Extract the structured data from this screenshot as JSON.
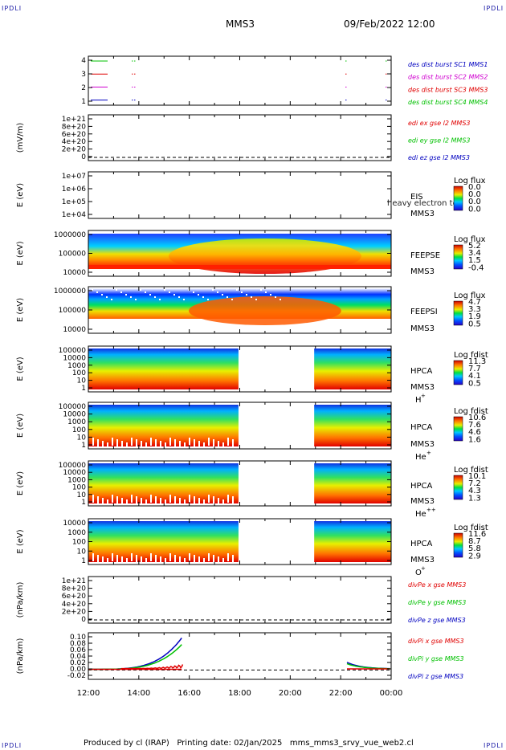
{
  "header": {
    "corner_left_top": "IPDLI",
    "corner_right_top": "IPDLI",
    "corner_left_bottom": "IPDLI",
    "corner_right_bottom": "IPDLI",
    "mission": "MMS3",
    "datetime": "09/Feb/2022 12:00"
  },
  "footer": {
    "text": "Produced by cl (IRAP)   Printing date: 02/Jan/2025   mms_mms3_srvy_vue_web2.cl"
  },
  "colors": {
    "red": "#e00000",
    "green": "#00c000",
    "blue": "#0000c0",
    "magenta": "#d000d0"
  },
  "chart_data": [
    {
      "type": "line",
      "name": "des dist burst availability",
      "yticks": [
        "4",
        "3",
        "2",
        "1"
      ],
      "legend": [
        {
          "text": "des dist burst SC1 MMS1",
          "color": "#0000c0"
        },
        {
          "text": "des dist burst SC2 MMS2",
          "color": "#d000d0"
        },
        {
          "text": "des dist burst SC3 MMS3",
          "color": "#e00000"
        },
        {
          "text": "des dist burst SC4 MMS4",
          "color": "#00c000"
        }
      ]
    },
    {
      "type": "line",
      "ylabel": "(mV/m)",
      "yticks": [
        "1e+21",
        "8e+20",
        "6e+20",
        "4e+20",
        "2e+20",
        "0"
      ],
      "legend": [
        {
          "text": "edi ex gse l2 MMS3",
          "color": "#e00000"
        },
        {
          "text": "edi ey gse l2 MMS3",
          "color": "#00c000"
        },
        {
          "text": "edi ez gse l2 MMS3",
          "color": "#0000c0"
        }
      ]
    },
    {
      "type": "heatmap",
      "ylabel": "E (eV)",
      "yticks": [
        "1e+07",
        "1e+06",
        "1e+05",
        "1e+04"
      ],
      "side": [
        "EIS",
        "MMS3"
      ],
      "overlay_text": "heavy electron to",
      "cbar_title": "Log flux",
      "cbar_values": [
        "0.0",
        "0.0",
        "0.0",
        "0.0"
      ]
    },
    {
      "type": "heatmap",
      "ylabel": "E (eV)",
      "yticks": [
        "1000000",
        "100000",
        "10000"
      ],
      "side": [
        "FEEPSE",
        "MMS3"
      ],
      "cbar_title": "Log flux",
      "cbar_values": [
        "5.2",
        "3.4",
        "1.5",
        "-0.4"
      ]
    },
    {
      "type": "heatmap",
      "ylabel": "E (eV)",
      "yticks": [
        "1000000",
        "100000",
        "10000"
      ],
      "side": [
        "FEEPSI",
        "MMS3"
      ],
      "cbar_title": "Log flux",
      "cbar_values": [
        "4.7",
        "3.3",
        "1.9",
        "0.5"
      ]
    },
    {
      "type": "heatmap",
      "ylabel": "E (eV)",
      "yticks": [
        "100000",
        "10000",
        "1000",
        "100",
        "10",
        "1"
      ],
      "side": [
        "HPCA",
        "MMS3"
      ],
      "species": "H",
      "charge": "+",
      "cbar_title": "Log fdist",
      "cbar_values": [
        "11.3",
        "7.7",
        "4.1",
        "0.5"
      ]
    },
    {
      "type": "heatmap",
      "ylabel": "E (eV)",
      "yticks": [
        "100000",
        "10000",
        "1000",
        "100",
        "10",
        "1"
      ],
      "side": [
        "HPCA",
        "MMS3"
      ],
      "species": "He",
      "charge": "+",
      "cbar_title": "Log fdist",
      "cbar_values": [
        "10.6",
        "7.6",
        "4.6",
        "1.6"
      ]
    },
    {
      "type": "heatmap",
      "ylabel": "E (eV)",
      "yticks": [
        "100000",
        "10000",
        "1000",
        "100",
        "10",
        "1"
      ],
      "side": [
        "HPCA",
        "MMS3"
      ],
      "species": "He",
      "charge": "++",
      "cbar_title": "Log fdist",
      "cbar_values": [
        "10.1",
        "7.2",
        "4.3",
        "1.3"
      ]
    },
    {
      "type": "heatmap",
      "ylabel": "E (eV)",
      "yticks": [
        "10000",
        "1000",
        "100",
        "10",
        "1"
      ],
      "side": [
        "HPCA",
        "MMS3"
      ],
      "species": "O",
      "charge": "+",
      "cbar_title": "Log fdist",
      "cbar_values": [
        "11.6",
        "8.7",
        "5.8",
        "2.9"
      ]
    },
    {
      "type": "line",
      "ylabel": "(nPa/km)",
      "yticks": [
        "1e+21",
        "8e+20",
        "6e+20",
        "4e+20",
        "2e+20",
        "0"
      ],
      "legend": [
        {
          "text": "divPe x gse MMS3",
          "color": "#e00000"
        },
        {
          "text": "divPe y gse MMS3",
          "color": "#00c000"
        },
        {
          "text": "divPe z gse MMS3",
          "color": "#0000c0"
        }
      ]
    },
    {
      "type": "line",
      "ylabel": "(nPa/km)",
      "yticks": [
        "0.10",
        "0.08",
        "0.06",
        "0.04",
        "0.02",
        "0.00",
        "-0.02"
      ],
      "ylim": [
        -0.02,
        0.1
      ],
      "legend": [
        {
          "text": "divPi x gse MMS3",
          "color": "#e00000"
        },
        {
          "text": "divPi y gse MMS3",
          "color": "#00c000"
        },
        {
          "text": "divPi z gse MMS3",
          "color": "#0000c0"
        }
      ]
    }
  ],
  "xaxis": {
    "ticks": [
      "12:00",
      "14:00",
      "16:00",
      "18:00",
      "20:00",
      "22:00",
      "00:00"
    ]
  }
}
